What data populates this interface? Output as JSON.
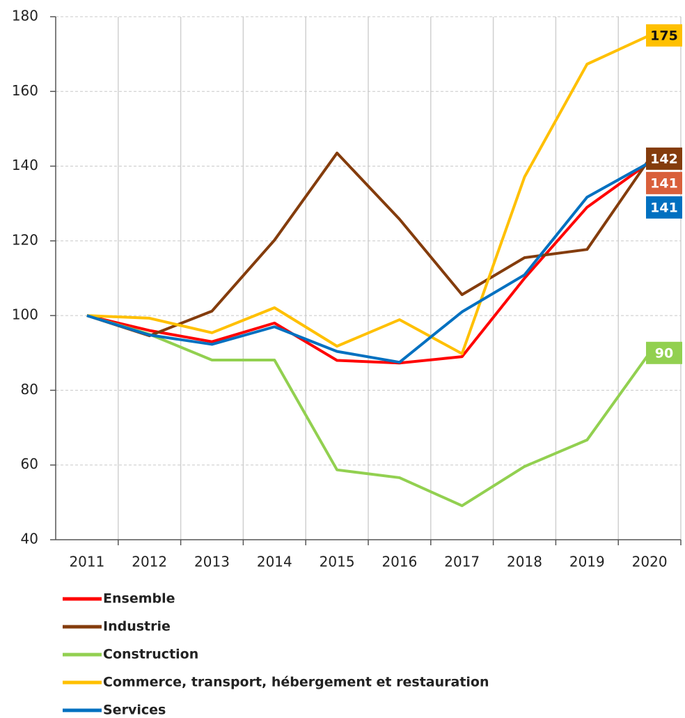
{
  "chart_data": {
    "type": "line",
    "categories": [
      "2011",
      "2012",
      "2013",
      "2014",
      "2015",
      "2016",
      "2017",
      "2018",
      "2019",
      "2020"
    ],
    "series": [
      {
        "name": "Ensemble",
        "color": "#ff0000",
        "label_color": "#d9603b",
        "values": [
          100,
          96,
          93,
          98,
          88,
          87.3,
          89,
          110,
          129,
          141
        ]
      },
      {
        "name": "Industrie",
        "color": "#843c0c",
        "label_color": "#843c0c",
        "values": [
          100,
          94.6,
          101.2,
          120.2,
          143.5,
          125.8,
          105.6,
          115.5,
          117.7,
          142
        ]
      },
      {
        "name": "Construction",
        "color": "#92d050",
        "label_color": "#92d050",
        "values": [
          100,
          95,
          88.1,
          88.1,
          58.7,
          56.6,
          49.1,
          59.6,
          66.7,
          90
        ]
      },
      {
        "name": "Commerce, transport, hébergement et restauration",
        "color": "#ffc000",
        "label_color": "#ffc000",
        "values": [
          100,
          99.3,
          95.4,
          102.1,
          91.8,
          98.9,
          89.8,
          137.1,
          167.3,
          175
        ]
      },
      {
        "name": "Services",
        "color": "#0070c0",
        "label_color": "#0070c0",
        "values": [
          100,
          94.8,
          92.3,
          97,
          90.4,
          87.5,
          101,
          110.9,
          131.7,
          141
        ]
      }
    ],
    "ylim": [
      40,
      180
    ],
    "yticks": [
      40,
      60,
      80,
      100,
      120,
      140,
      160,
      180
    ],
    "grid": true
  }
}
